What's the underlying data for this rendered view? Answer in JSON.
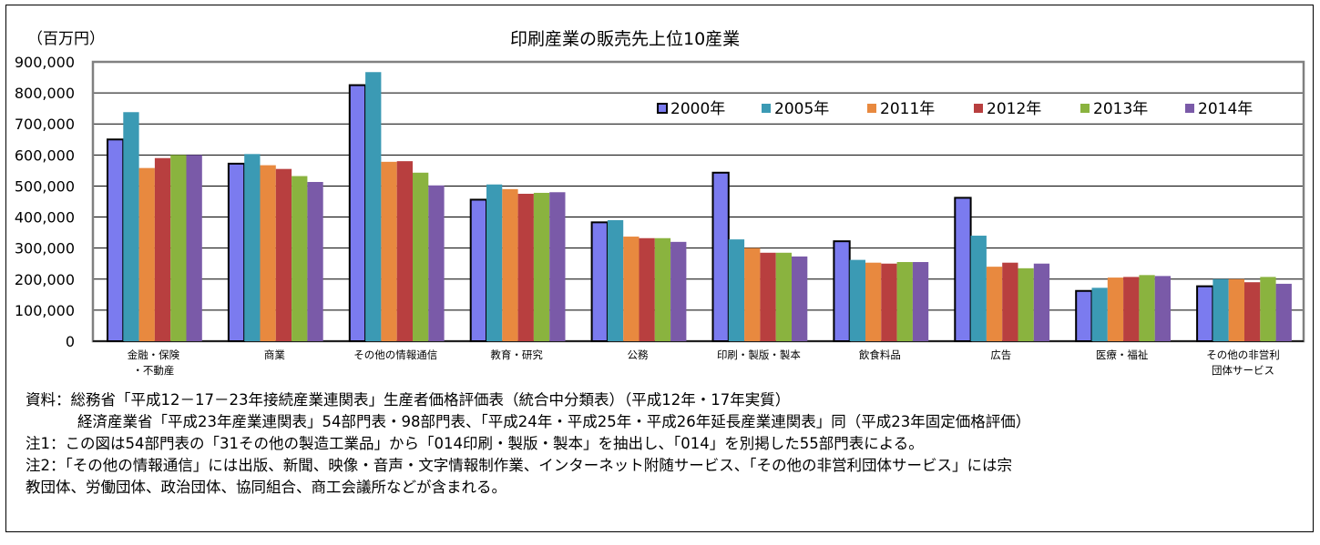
{
  "chart_data": {
    "type": "bar",
    "title": "印刷産業の販売先上位10産業",
    "ylabel": "（百万円）",
    "xlabel": "",
    "ylim": [
      0,
      900000
    ],
    "y_ticks": [
      "0",
      "100,000",
      "200,000",
      "300,000",
      "400,000",
      "500,000",
      "600,000",
      "700,000",
      "800,000",
      "900,000"
    ],
    "categories": [
      [
        "金融・保険",
        "・不動産"
      ],
      [
        "商業"
      ],
      [
        "その他の情報通信"
      ],
      [
        "教育・研究"
      ],
      [
        "公務"
      ],
      [
        "印刷・製版・製本"
      ],
      [
        "飲食料品"
      ],
      [
        "広告"
      ],
      [
        "医療・福祉"
      ],
      [
        "その他の非営利",
        "団体サービス"
      ]
    ],
    "legend_position": "top-right",
    "grid": true,
    "series": [
      {
        "name": "2000年",
        "color": "#7B7BEF",
        "values": [
          650000,
          572000,
          825000,
          456000,
          383000,
          543000,
          322000,
          462000,
          162000,
          177000
        ]
      },
      {
        "name": "2005年",
        "color": "#3B9AB4",
        "values": [
          738000,
          603000,
          867000,
          505000,
          390000,
          328000,
          262000,
          340000,
          172000,
          200000
        ]
      },
      {
        "name": "2011年",
        "color": "#E8893F",
        "values": [
          558000,
          567000,
          578000,
          490000,
          337000,
          300000,
          253000,
          240000,
          205000,
          200000
        ]
      },
      {
        "name": "2012年",
        "color": "#B83F3F",
        "values": [
          590000,
          555000,
          580000,
          475000,
          332000,
          285000,
          250000,
          253000,
          207000,
          190000
        ]
      },
      {
        "name": "2013年",
        "color": "#8AB33F",
        "values": [
          600000,
          532000,
          543000,
          478000,
          332000,
          285000,
          255000,
          235000,
          213000,
          207000
        ]
      },
      {
        "name": "2014年",
        "color": "#7A5AA8",
        "values": [
          600000,
          513000,
          502000,
          480000,
          320000,
          273000,
          255000,
          250000,
          210000,
          185000
        ]
      }
    ]
  },
  "notes": {
    "line1": "資料：総務省「平成12－17－23年接続産業連関表」生産者価格評価表（統合中分類表）（平成12年・17年実質）",
    "line2": "経済産業省「平成23年産業連関表」54部門表・98部門表、「平成24年・平成25年・平成26年延長産業連関表」同（平成23年固定価格評価）",
    "line3": "注1：この図は54部門表の「31その他の製造工業品」から「014印刷・製版・製本」を抽出し、「014」を別掲した55部門表による。",
    "line4": "注2：「その他の情報通信」には出版、新聞、映像・音声・文字情報制作業、インターネット附随サービス、「その他の非営利団体サービス」には宗",
    "line5": "教団体、労働団体、政治団体、協同組合、商工会議所などが含まれる。"
  }
}
